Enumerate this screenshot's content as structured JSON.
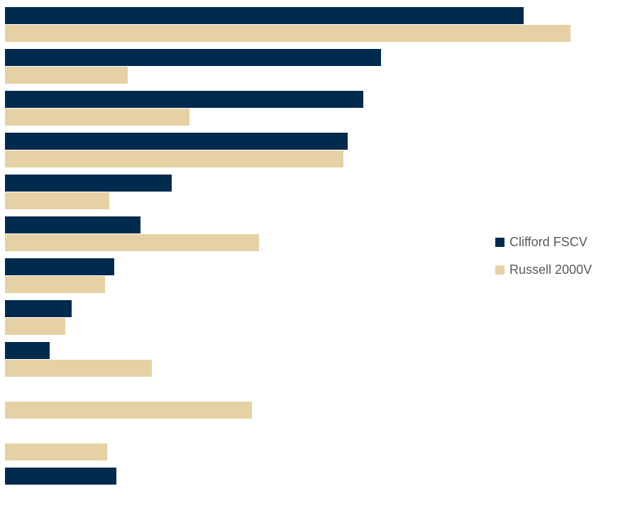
{
  "colors": {
    "clifford_navy": "#002B4E",
    "russell_tan": "#E5D1A3",
    "legend_text": "#58595A",
    "background": "#FFFFFF"
  },
  "legend": {
    "items": [
      {
        "label": "Clifford FSCV",
        "color": "#002B4E"
      },
      {
        "label": "Russell 2000V",
        "color": "#E5D1A3"
      }
    ]
  },
  "chart_data": {
    "type": "bar",
    "orientation": "horizontal",
    "title": "",
    "xlabel": "",
    "ylabel": "",
    "grid": false,
    "axis_labels_visible": false,
    "category_labels_visible": false,
    "categories": [
      "",
      "",
      "",
      "",
      "",
      "",
      "",
      "",
      "",
      "",
      "",
      ""
    ],
    "series": [
      {
        "name": "Clifford FSCV",
        "color": "#002B4E",
        "values": [
          23.3,
          16.9,
          16.1,
          15.4,
          7.5,
          6.1,
          4.9,
          3.0,
          2.0,
          0.0,
          0.0,
          5.0
        ]
      },
      {
        "name": "Russell 2000V",
        "color": "#E5D1A3",
        "values": [
          25.4,
          5.5,
          8.3,
          15.2,
          4.7,
          11.4,
          4.5,
          2.7,
          6.6,
          11.1,
          4.6,
          0.0
        ]
      }
    ],
    "value_units": "percent (estimated; each series sums to ~100, axis not labeled)",
    "xlim": [
      0,
      27.5
    ],
    "legend_position": "center-right"
  }
}
